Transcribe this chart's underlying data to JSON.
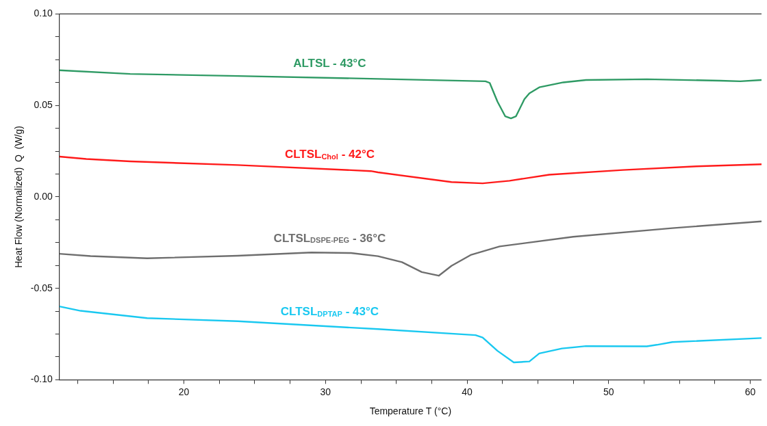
{
  "chart_data": {
    "type": "line",
    "xlabel": "Temperature T (°C)",
    "ylabel": "Heat Flow (Normalized)  Q  (W/g)",
    "xlim": [
      11.2,
      60.8
    ],
    "xticks": [
      {
        "value": 12.5,
        "label": null
      },
      {
        "value": 15,
        "label": null
      },
      {
        "value": 17.5,
        "label": null
      },
      20,
      {
        "value": 22.5,
        "label": null
      },
      {
        "value": 25,
        "label": null
      },
      {
        "value": 27.5,
        "label": null
      },
      30,
      {
        "value": 32.5,
        "label": null
      },
      {
        "value": 35,
        "label": null
      },
      {
        "value": 37.5,
        "label": null
      },
      40,
      {
        "value": 42.5,
        "label": null
      },
      {
        "value": 45,
        "label": null
      },
      {
        "value": 47.5,
        "label": null
      },
      50,
      {
        "value": 52.5,
        "label": null
      },
      {
        "value": 55,
        "label": null
      },
      {
        "value": 57.5,
        "label": null
      },
      60
    ],
    "ylim": [
      -0.1,
      0.1
    ],
    "yticks": [
      {
        "value": -0.1,
        "label": "-0.10"
      },
      {
        "value": -0.0875,
        "label": null
      },
      {
        "value": -0.075,
        "label": null
      },
      {
        "value": -0.0625,
        "label": null
      },
      {
        "value": -0.05,
        "label": "-0.05"
      },
      {
        "value": -0.0375,
        "label": null
      },
      {
        "value": -0.025,
        "label": null
      },
      {
        "value": -0.0125,
        "label": null
      },
      {
        "value": 0,
        "label": "0.00"
      },
      {
        "value": 0.0125,
        "label": null
      },
      {
        "value": 0.025,
        "label": null
      },
      {
        "value": 0.0375,
        "label": null
      },
      {
        "value": 0.05,
        "label": "0.05"
      },
      {
        "value": 0.0625,
        "label": null
      },
      {
        "value": 0.075,
        "label": null
      },
      {
        "value": 0.0875,
        "label": null
      },
      {
        "value": 0.1,
        "label": "0.10"
      }
    ],
    "grid": false,
    "legend": false,
    "marker": "none",
    "line_style": "solid",
    "series": [
      {
        "name": "ALTSL - 43°C",
        "color": "#2e9a64",
        "x": [
          11.2,
          16.2,
          23.8,
          33.2,
          41.3,
          41.6,
          42.15,
          42.7,
          43.1,
          43.45,
          44.05,
          44.4,
          45.1,
          46.8,
          48.4,
          52.7,
          57.9,
          59.3,
          60.8
        ],
        "values": [
          0.0692,
          0.0672,
          0.0661,
          0.0646,
          0.0632,
          0.0623,
          0.052,
          0.044,
          0.0429,
          0.044,
          0.0534,
          0.0566,
          0.0599,
          0.0626,
          0.0639,
          0.0643,
          0.0635,
          0.0632,
          0.0639
        ]
      },
      {
        "name": "CLTSL$_{Chol}$ - 42°C",
        "color": "#ff1a1a",
        "x": [
          11.2,
          13.1,
          16.2,
          23.8,
          33.2,
          33.7,
          38.9,
          41.1,
          43.0,
          45.8,
          51.0,
          56.2,
          60.8
        ],
        "values": [
          0.022,
          0.0207,
          0.0194,
          0.0174,
          0.0141,
          0.0134,
          0.0081,
          0.0074,
          0.0088,
          0.0121,
          0.0147,
          0.0167,
          0.0178
        ]
      },
      {
        "name": "CLTSL$_{DSPE-PEG}$ - 36°C",
        "color": "#6e6e6e",
        "x": [
          11.2,
          13.4,
          17.4,
          23.8,
          29.0,
          31.8,
          33.7,
          35.4,
          36.8,
          38.0,
          38.9,
          40.25,
          42.3,
          47.5,
          54.5,
          60.8
        ],
        "values": [
          -0.0311,
          -0.0324,
          -0.0336,
          -0.0322,
          -0.0304,
          -0.0307,
          -0.0324,
          -0.0357,
          -0.0411,
          -0.0431,
          -0.0377,
          -0.0318,
          -0.0271,
          -0.0218,
          -0.0171,
          -0.0134
        ]
      },
      {
        "name": "CLTSL$_{DPTAP}$ - 43°C",
        "color": "#19c8f0",
        "x": [
          11.2,
          12.7,
          17.4,
          23.8,
          33.7,
          40.6,
          41.1,
          42.15,
          43.3,
          44.4,
          45.1,
          46.7,
          48.4,
          52.7,
          53.4,
          54.5,
          60.8
        ],
        "values": [
          -0.0599,
          -0.0623,
          -0.0663,
          -0.068,
          -0.0723,
          -0.0756,
          -0.0769,
          -0.0842,
          -0.0905,
          -0.09,
          -0.0856,
          -0.0829,
          -0.0816,
          -0.0817,
          -0.0809,
          -0.0794,
          -0.0772
        ]
      }
    ]
  }
}
